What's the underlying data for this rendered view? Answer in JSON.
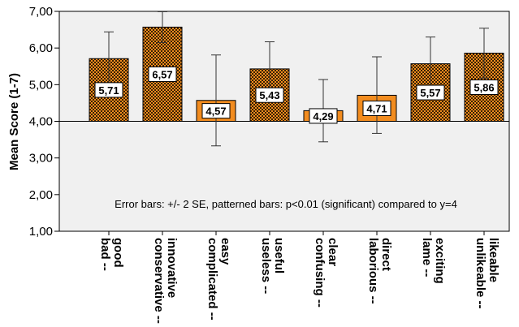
{
  "chart_data": {
    "type": "bar",
    "ylabel": "Mean Score (1-7)",
    "ylim": [
      1,
      7
    ],
    "yticks": [
      "1,00",
      "2,00",
      "3,00",
      "4,00",
      "5,00",
      "6,00",
      "7,00"
    ],
    "reference_line": 4,
    "categories": [
      [
        "bad --",
        "good"
      ],
      [
        "conservative --",
        "innovative"
      ],
      [
        "complicated --",
        "easy"
      ],
      [
        "useless --",
        "useful"
      ],
      [
        "confusing --",
        "clear"
      ],
      [
        "laborious --",
        "direct"
      ],
      [
        "lame --",
        "exciting"
      ],
      [
        "unlikeable --",
        "likeable"
      ]
    ],
    "values": [
      5.71,
      6.57,
      4.57,
      5.43,
      4.29,
      4.71,
      5.57,
      5.86
    ],
    "value_labels": [
      "5,71",
      "6,57",
      "4,57",
      "5,43",
      "4,29",
      "4,71",
      "5,57",
      "5,86"
    ],
    "error_low": [
      4.98,
      6.15,
      3.33,
      4.69,
      3.44,
      3.67,
      4.84,
      5.18
    ],
    "error_high": [
      6.44,
      6.99,
      5.81,
      6.17,
      5.14,
      5.76,
      6.3,
      6.54
    ],
    "patterned": [
      true,
      true,
      false,
      true,
      false,
      false,
      true,
      true
    ],
    "annotation": "Error bars: +/- 2 SE, patterned bars: p<0.01 (significant) compared to y=4",
    "grid": false,
    "colors": {
      "bar_fill": "#f28c1f",
      "pattern_dot": "#000000",
      "plot_background": "#f0f0f0",
      "bar_edge": "#000000"
    }
  }
}
